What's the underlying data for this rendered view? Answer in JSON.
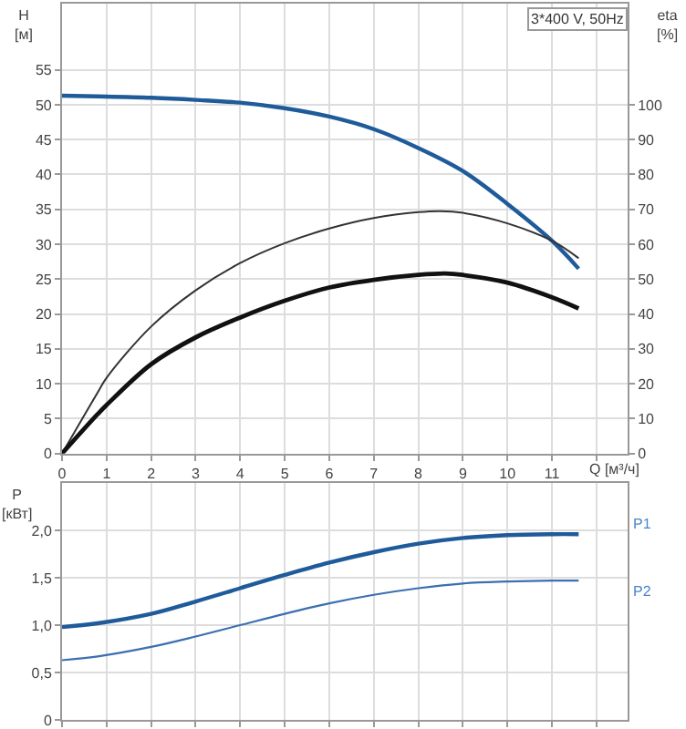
{
  "chart_data": [
    {
      "type": "line",
      "title": "3*400 V, 50Hz",
      "ylabel": "H\n[м]",
      "y2label": "eta\n[%]",
      "xlabel": "Q [м³/ч]",
      "xlim": [
        0,
        12.7
      ],
      "xticks": [
        0,
        1,
        2,
        3,
        4,
        5,
        6,
        7,
        8,
        9,
        10,
        11,
        {
          "value": 12,
          "label": null
        }
      ],
      "ylim": [
        0,
        64.5
      ],
      "yticks": [
        0,
        5,
        10,
        15,
        20,
        25,
        30,
        35,
        40,
        45,
        50,
        55
      ],
      "y2lim": [
        0,
        129
      ],
      "y2ticks": [
        0,
        10,
        20,
        30,
        40,
        50,
        60,
        70,
        80,
        90,
        100
      ],
      "grid": true,
      "legend": false,
      "marker": "none",
      "line_style": "solid",
      "series": [
        {
          "color": "#1f5b9a",
          "x": [
            0,
            0.8,
            2,
            3,
            4,
            5,
            6,
            7,
            8,
            9,
            10,
            11,
            11.6
          ],
          "values": [
            51.3,
            51.2,
            51,
            50.7,
            50.3,
            49.5,
            48.3,
            46.5,
            43.8,
            40.5,
            35.8,
            30.5,
            26.5
          ]
        },
        {
          "color": "#333333",
          "axis": "y2",
          "x": [
            0,
            0.8,
            1,
            2,
            3,
            4,
            5,
            6,
            7,
            8,
            8.5,
            9,
            10,
            11,
            11.6
          ],
          "values": [
            0,
            17.5,
            21.7,
            36.4,
            46.8,
            54.6,
            60.3,
            64.5,
            67.5,
            69.2,
            69.5,
            69,
            66,
            61,
            56
          ]
        },
        {
          "color": "#111111",
          "axis": "y2",
          "x": [
            0,
            0.8,
            1,
            2,
            3,
            4,
            5,
            6,
            7,
            8,
            8.6,
            9,
            10,
            11,
            11.6
          ],
          "values": [
            0,
            11.3,
            13.9,
            25.6,
            33.3,
            39,
            43.8,
            47.6,
            49.8,
            51.2,
            51.6,
            51.2,
            49,
            44.8,
            41.6
          ]
        }
      ]
    },
    {
      "type": "line",
      "ylabel": "P\n[кВт]",
      "tick_labels": "y",
      "xlim": [
        0,
        12.7
      ],
      "xticks": [
        0,
        1,
        2,
        3,
        4,
        5,
        6,
        7,
        8,
        9,
        10,
        11,
        12
      ],
      "ylim": [
        0,
        2.5
      ],
      "yticks": [
        0,
        {
          "value": 0.5,
          "label": "0,5"
        },
        {
          "value": 1,
          "label": "1,0"
        },
        {
          "value": 1.5,
          "label": "1,5"
        },
        {
          "value": 2,
          "label": "2,0"
        }
      ],
      "grid": true,
      "legend": false,
      "marker": "none",
      "line_style": "solid",
      "x": [
        0,
        0.8,
        2,
        3,
        4,
        5,
        6,
        7,
        8,
        9,
        10,
        11,
        11.6
      ],
      "series": [
        {
          "name": "P1",
          "color": "#1f5b9a",
          "values": [
            0.98,
            1.02,
            1.12,
            1.25,
            1.39,
            1.53,
            1.66,
            1.77,
            1.86,
            1.92,
            1.95,
            1.96,
            1.96
          ]
        },
        {
          "name": "P2",
          "color": "#3b6fb0",
          "values": [
            0.63,
            0.67,
            0.77,
            0.88,
            1.0,
            1.12,
            1.23,
            1.32,
            1.39,
            1.44,
            1.46,
            1.47,
            1.47
          ]
        }
      ]
    }
  ]
}
